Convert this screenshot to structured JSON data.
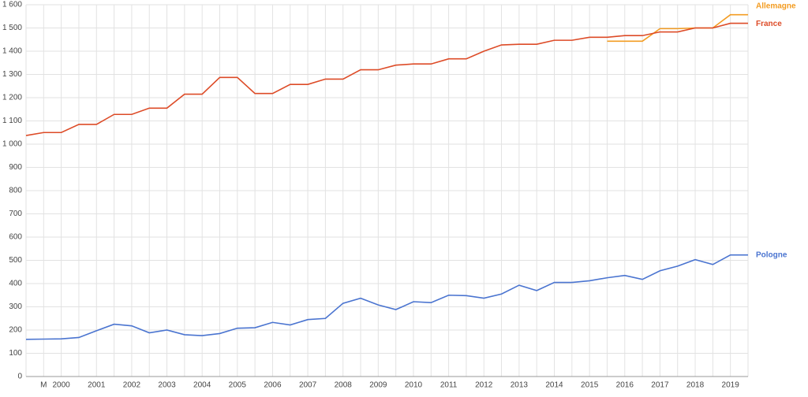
{
  "chart_data": {
    "type": "line",
    "categories": [
      null,
      "M",
      "2000",
      null,
      "2001",
      null,
      "2002",
      null,
      "2003",
      null,
      "2004",
      null,
      "2005",
      null,
      "2006",
      null,
      "2007",
      null,
      "2008",
      null,
      "2009",
      null,
      "2010",
      null,
      "2011",
      null,
      "2012",
      null,
      "2013",
      null,
      "2014",
      null,
      "2015",
      null,
      "2016",
      null,
      "2017",
      null,
      "2018",
      null,
      "2019",
      null
    ],
    "series": [
      {
        "name": "Allemagne",
        "color": "#f39c22",
        "values": [
          null,
          null,
          null,
          null,
          null,
          null,
          null,
          null,
          null,
          null,
          null,
          null,
          null,
          null,
          null,
          null,
          null,
          null,
          null,
          null,
          null,
          null,
          null,
          null,
          null,
          null,
          null,
          null,
          null,
          null,
          null,
          null,
          null,
          1443,
          1443,
          1443,
          1497,
          1497,
          1500,
          1500,
          1557,
          1557
        ]
      },
      {
        "name": "France",
        "color": "#dd4b27",
        "values": [
          1037,
          1050,
          1050,
          1085,
          1085,
          1128,
          1128,
          1155,
          1155,
          1215,
          1215,
          1287,
          1287,
          1218,
          1218,
          1257,
          1257,
          1280,
          1280,
          1320,
          1320,
          1340,
          1345,
          1345,
          1367,
          1367,
          1400,
          1427,
          1430,
          1430,
          1447,
          1447,
          1460,
          1460,
          1467,
          1467,
          1483,
          1483,
          1500,
          1500,
          1520,
          1520
        ]
      },
      {
        "name": "Pologne",
        "color": "#4a74d0",
        "values": [
          160,
          161,
          162,
          168,
          197,
          225,
          218,
          188,
          200,
          180,
          176,
          185,
          208,
          210,
          233,
          222,
          245,
          250,
          315,
          337,
          308,
          288,
          322,
          318,
          350,
          348,
          337,
          355,
          393,
          370,
          405,
          405,
          412,
          425,
          435,
          418,
          455,
          475,
          503,
          482,
          523,
          523
        ]
      }
    ],
    "ylim": [
      0,
      1600
    ],
    "yticks": [
      0,
      100,
      200,
      300,
      400,
      500,
      600,
      700,
      800,
      900,
      {
        "value": 1000,
        "label": "1 000"
      },
      {
        "value": 1100,
        "label": "1 100"
      },
      {
        "value": 1200,
        "label": "1 200"
      },
      {
        "value": 1300,
        "label": "1 300"
      },
      {
        "value": 1400,
        "label": "1 400"
      },
      {
        "value": 1500,
        "label": "1 500"
      },
      {
        "value": 1600,
        "label": "1 600"
      }
    ],
    "grid": true
  }
}
